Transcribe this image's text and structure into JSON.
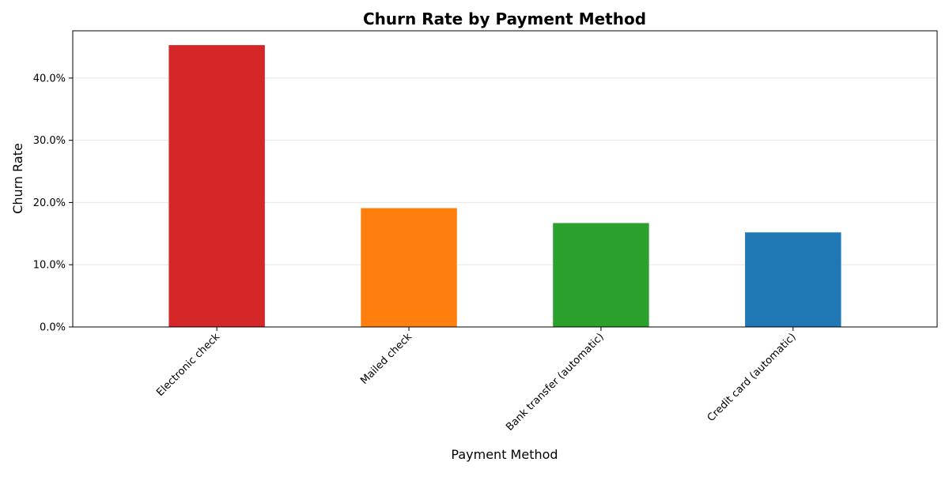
{
  "chart_data": {
    "type": "bar",
    "title": "Churn Rate by Payment Method",
    "xlabel": "Payment Method",
    "ylabel": "Churn Rate",
    "categories": [
      "Electronic check",
      "Mailed check",
      "Bank transfer (automatic)",
      "Credit card (automatic)"
    ],
    "values": [
      0.453,
      0.191,
      0.167,
      0.152
    ],
    "colors": [
      "#d62728",
      "#ff7f0e",
      "#2ca02c",
      "#1f77b4"
    ],
    "ylim": [
      0,
      0.476
    ],
    "yticks": [
      0.0,
      0.1,
      0.2,
      0.3,
      0.4
    ],
    "ytick_labels": [
      "0.0%",
      "10.0%",
      "20.0%",
      "30.0%",
      "40.0%"
    ],
    "grid": "horizontal",
    "xtick_rotation": 45
  }
}
